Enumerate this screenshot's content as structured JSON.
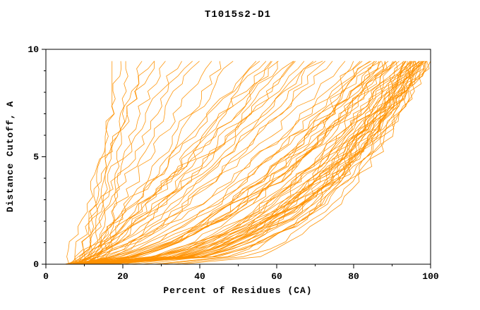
{
  "page": {
    "background": "#ffffff"
  },
  "chart_data": {
    "type": "line",
    "title": "T1015s2-D1",
    "xlabel": "Percent of Residues (CA)",
    "ylabel": "Distance Cutoff, A",
    "xlim": [
      0,
      100
    ],
    "ylim": [
      0,
      10
    ],
    "x_ticks": [
      0,
      20,
      40,
      60,
      80,
      100
    ],
    "y_ticks": [
      0,
      5,
      10
    ],
    "x_minor_step": 10,
    "y_minor_step": 1,
    "grid": false,
    "legend": "none",
    "line_color": "#ff9100",
    "frame_color": "#000000",
    "curve_top_y": 9.75,
    "series_description": "Each curve = one model: percent of CA residues (x) within distance cutoff (y). Curves approximated as [start_percent_at_cutoff_0, end_percent_at_cutoff_max, shape_exponent].",
    "curves": [
      [
        14,
        18,
        1.6
      ],
      [
        12,
        20,
        1.8
      ],
      [
        16,
        22,
        1.4
      ],
      [
        8,
        28,
        1.3
      ],
      [
        9,
        32,
        1.2
      ],
      [
        7,
        35,
        1.1
      ],
      [
        10,
        38,
        1.2
      ],
      [
        8,
        40,
        1.0
      ],
      [
        11,
        44,
        1.1
      ],
      [
        9,
        47,
        0.9
      ],
      [
        12,
        50,
        1.0
      ],
      [
        6,
        30,
        1.4
      ],
      [
        10,
        26,
        1.5
      ],
      [
        7,
        55,
        0.9
      ],
      [
        8,
        58,
        0.85
      ],
      [
        9,
        60,
        0.9
      ],
      [
        6,
        62,
        0.8
      ],
      [
        10,
        65,
        0.85
      ],
      [
        8,
        67,
        0.8
      ],
      [
        7,
        70,
        0.75
      ],
      [
        11,
        72,
        0.8
      ],
      [
        9,
        74,
        0.7
      ],
      [
        12,
        75,
        0.75
      ],
      [
        6,
        57,
        0.95
      ],
      [
        8,
        63,
        0.9
      ],
      [
        10,
        68,
        0.85
      ],
      [
        7,
        66,
        0.8
      ],
      [
        9,
        71,
        0.75
      ],
      [
        11,
        59,
        0.9
      ],
      [
        5,
        80,
        0.7
      ],
      [
        6,
        82,
        0.65
      ],
      [
        7,
        84,
        0.6
      ],
      [
        8,
        85,
        0.6
      ],
      [
        9,
        86,
        0.55
      ],
      [
        10,
        88,
        0.55
      ],
      [
        5,
        90,
        0.5
      ],
      [
        6,
        91,
        0.5
      ],
      [
        7,
        92,
        0.5
      ],
      [
        8,
        93,
        0.45
      ],
      [
        9,
        94,
        0.45
      ],
      [
        10,
        95,
        0.45
      ],
      [
        11,
        96,
        0.4
      ],
      [
        12,
        96,
        0.4
      ],
      [
        5,
        97,
        0.4
      ],
      [
        6,
        97,
        0.4
      ],
      [
        7,
        98,
        0.35
      ],
      [
        8,
        98,
        0.35
      ],
      [
        9,
        99,
        0.35
      ],
      [
        10,
        99,
        0.35
      ],
      [
        11,
        100,
        0.3
      ],
      [
        12,
        100,
        0.3
      ],
      [
        6,
        85,
        0.6
      ],
      [
        7,
        87,
        0.55
      ],
      [
        8,
        89,
        0.5
      ],
      [
        9,
        90,
        0.5
      ],
      [
        10,
        92,
        0.45
      ],
      [
        11,
        93,
        0.45
      ],
      [
        12,
        94,
        0.4
      ],
      [
        13,
        95,
        0.4
      ],
      [
        14,
        96,
        0.4
      ],
      [
        15,
        97,
        0.35
      ],
      [
        20,
        95,
        0.5
      ],
      [
        22,
        96,
        0.45
      ],
      [
        25,
        97,
        0.45
      ],
      [
        28,
        98,
        0.4
      ],
      [
        30,
        98,
        0.4
      ],
      [
        33,
        99,
        0.38
      ],
      [
        35,
        99,
        0.35
      ],
      [
        18,
        93,
        0.5
      ],
      [
        16,
        90,
        0.55
      ],
      [
        14,
        88,
        0.6
      ],
      [
        13,
        86,
        0.6
      ],
      [
        5,
        83,
        0.65
      ],
      [
        6,
        88,
        0.55
      ],
      [
        7,
        91,
        0.5
      ],
      [
        8,
        95,
        0.42
      ],
      [
        9,
        97,
        0.4
      ],
      [
        10,
        98,
        0.38
      ],
      [
        11,
        99,
        0.35
      ],
      [
        12,
        97,
        0.4
      ],
      [
        13,
        98,
        0.38
      ],
      [
        14,
        99,
        0.36
      ],
      [
        15,
        100,
        0.33
      ],
      [
        16,
        98,
        0.4
      ],
      [
        17,
        99,
        0.37
      ]
    ]
  }
}
